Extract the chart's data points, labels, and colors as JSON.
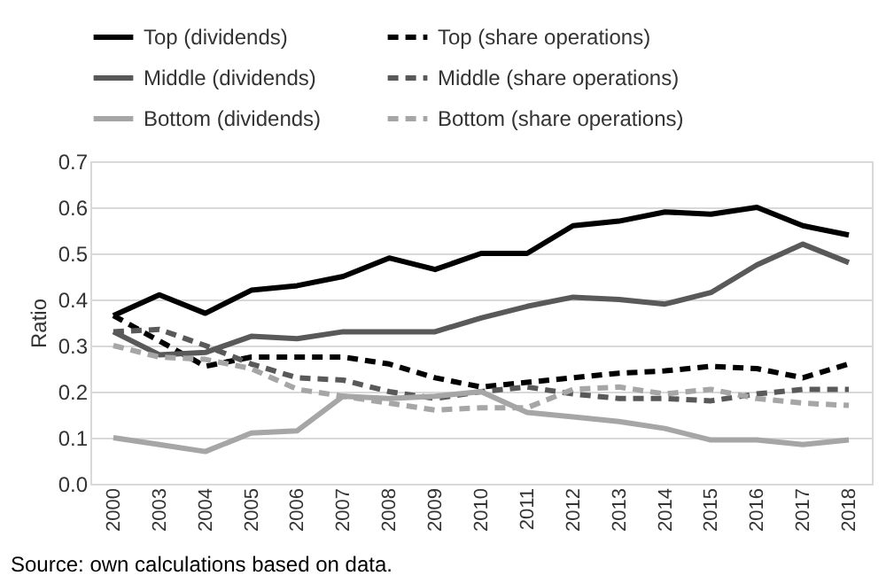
{
  "chart_data": {
    "type": "line",
    "ylabel": "Ratio",
    "categories": [
      "2000",
      "2003",
      "2004",
      "2005",
      "2006",
      "2007",
      "2008",
      "2009",
      "2010",
      "2011",
      "2012",
      "2013",
      "2014",
      "2015",
      "2016",
      "2017",
      "2018"
    ],
    "ylim": [
      0,
      0.7
    ],
    "yticks": [
      {
        "value": 0,
        "label": "0.0"
      },
      0.1,
      0.2,
      0.3,
      0.4,
      0.5,
      0.6,
      0.7
    ],
    "grid": "y",
    "legend": "top",
    "marker": "none",
    "series": [
      {
        "name": "Top (dividends)",
        "color": "#000000",
        "line_style": "solid",
        "values": [
          0.365,
          0.41,
          0.37,
          0.42,
          0.43,
          0.45,
          0.49,
          0.465,
          0.5,
          0.5,
          0.56,
          0.57,
          0.59,
          0.585,
          0.6,
          0.56,
          0.54
        ]
      },
      {
        "name": "Top (share operations)",
        "color": "#000000",
        "line_style": "dashed",
        "values": [
          0.365,
          0.31,
          0.255,
          0.275,
          0.275,
          0.275,
          0.26,
          0.23,
          0.21,
          0.22,
          0.23,
          0.24,
          0.245,
          0.255,
          0.25,
          0.23,
          0.26
        ]
      },
      {
        "name": "Middle (dividends)",
        "color": "#595959",
        "line_style": "solid",
        "values": [
          0.33,
          0.28,
          0.285,
          0.32,
          0.315,
          0.33,
          0.33,
          0.33,
          0.36,
          0.385,
          0.405,
          0.4,
          0.39,
          0.415,
          0.475,
          0.52,
          0.48
        ]
      },
      {
        "name": "Middle (share operations)",
        "color": "#595959",
        "line_style": "dashed",
        "values": [
          0.33,
          0.335,
          0.3,
          0.26,
          0.23,
          0.225,
          0.2,
          0.185,
          0.2,
          0.21,
          0.195,
          0.185,
          0.185,
          0.18,
          0.195,
          0.205,
          0.205
        ]
      },
      {
        "name": "Bottom (dividends)",
        "color": "#a6a6a6",
        "line_style": "solid",
        "values": [
          0.1,
          0.085,
          0.07,
          0.11,
          0.115,
          0.19,
          0.185,
          0.19,
          0.2,
          0.155,
          0.145,
          0.135,
          0.12,
          0.095,
          0.095,
          0.085,
          0.095
        ]
      },
      {
        "name": "Bottom (share operations)",
        "color": "#a6a6a6",
        "line_style": "dashed",
        "values": [
          0.3,
          0.275,
          0.27,
          0.25,
          0.205,
          0.19,
          0.175,
          0.16,
          0.165,
          0.165,
          0.205,
          0.21,
          0.195,
          0.205,
          0.185,
          0.175,
          0.17
        ]
      }
    ],
    "annotations": [
      "Source: own calculations based on data."
    ]
  }
}
